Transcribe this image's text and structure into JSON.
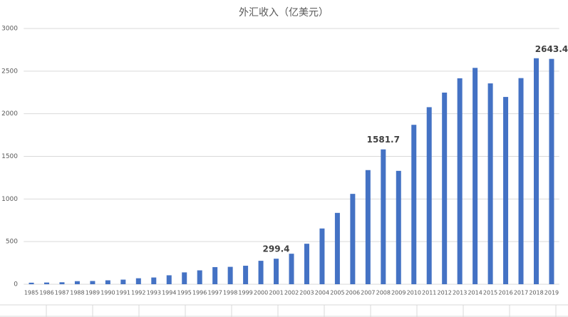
{
  "chart_data": {
    "type": "bar",
    "title": "外汇收入（亿美元）",
    "categories": [
      "1985",
      "1986",
      "1987",
      "1988",
      "1989",
      "1990",
      "1991",
      "1992",
      "1993",
      "1994",
      "1995",
      "1996",
      "1997",
      "1998",
      "1999",
      "2000",
      "2001",
      "2002",
      "2003",
      "2004",
      "2005",
      "2006",
      "2007",
      "2008",
      "2009",
      "2010",
      "2011",
      "2012",
      "2013",
      "2014",
      "2015",
      "2016",
      "2017",
      "2018",
      "2019"
    ],
    "values": [
      18,
      20,
      23,
      36,
      38,
      46,
      54,
      70,
      79,
      105,
      139,
      163,
      201,
      204,
      217,
      275,
      299.4,
      358,
      475,
      654,
      837,
      1060,
      1339,
      1581.7,
      1330,
      1870,
      2077,
      2248,
      2416,
      2538,
      2356,
      2197,
      2418,
      2651,
      2643.4
    ],
    "value_labels": [
      null,
      null,
      null,
      null,
      null,
      null,
      null,
      null,
      null,
      null,
      null,
      null,
      null,
      null,
      null,
      null,
      "299.4",
      null,
      null,
      null,
      null,
      null,
      null,
      "1581.7",
      null,
      null,
      null,
      null,
      null,
      null,
      null,
      null,
      null,
      null,
      "2643.4"
    ],
    "color": "#4472c4",
    "ylim": [
      0,
      3000
    ],
    "yticks": [
      0,
      500,
      1000,
      1500,
      2000,
      2500,
      3000
    ],
    "grid": true
  }
}
